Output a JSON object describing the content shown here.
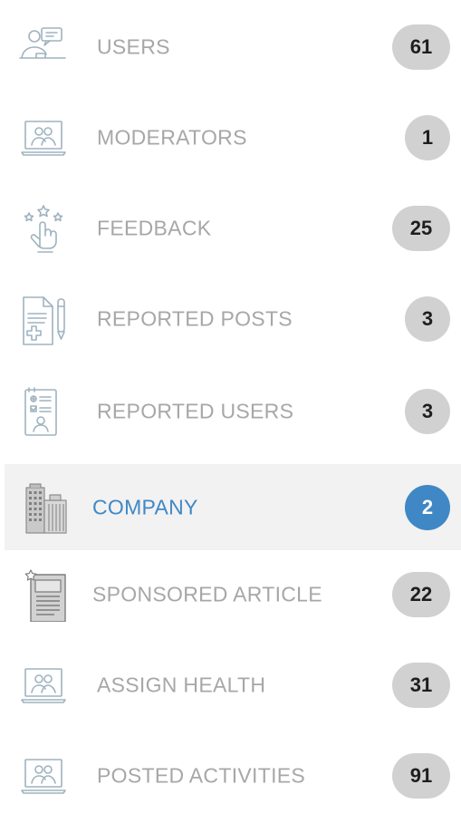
{
  "menu": {
    "items": [
      {
        "label": "USERS",
        "count": "61",
        "icon": "users-chat-icon"
      },
      {
        "label": "MODERATORS",
        "count": "1",
        "icon": "monitor-people-icon"
      },
      {
        "label": "FEEDBACK",
        "count": "25",
        "icon": "hand-stars-icon"
      },
      {
        "label": "REPORTED POSTS",
        "count": "3",
        "icon": "document-pen-icon"
      },
      {
        "label": "REPORTED USERS",
        "count": "3",
        "icon": "user-report-icon"
      },
      {
        "label": "COMPANY",
        "count": "2",
        "icon": "building-icon",
        "active": true
      },
      {
        "label": "SPONSORED ARTICLE",
        "count": "22",
        "icon": "article-star-icon"
      },
      {
        "label": "ASSIGN HEALTH",
        "count": "31",
        "icon": "monitor-people-icon"
      },
      {
        "label": "POSTED ACTIVITIES",
        "count": "91",
        "icon": "monitor-people-icon"
      }
    ]
  },
  "colors": {
    "label": "#a7a7a7",
    "active_label": "#3f88c5",
    "active_background": "#f2f2f2",
    "badge": "#d1d1d1",
    "active_badge": "#3f88c5",
    "icon_stroke": "#9fb3bf"
  }
}
